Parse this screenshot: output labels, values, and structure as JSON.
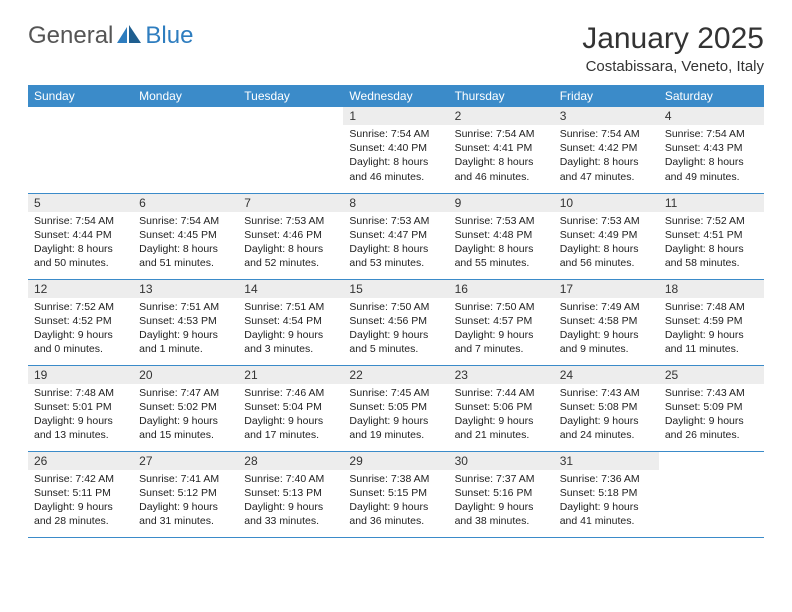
{
  "logo": {
    "word1": "General",
    "word2": "Blue"
  },
  "title": "January 2025",
  "location": "Costabissara, Veneto, Italy",
  "colors": {
    "header_bg": "#3b8bc9",
    "header_fg": "#ffffff",
    "daynum_bg": "#ededed",
    "border": "#3b8bc9",
    "logo_gray": "#555555",
    "logo_blue": "#2e7dbf"
  },
  "day_headers": [
    "Sunday",
    "Monday",
    "Tuesday",
    "Wednesday",
    "Thursday",
    "Friday",
    "Saturday"
  ],
  "weeks": [
    [
      {
        "n": "",
        "sr": "",
        "ss": "",
        "dl": ""
      },
      {
        "n": "",
        "sr": "",
        "ss": "",
        "dl": ""
      },
      {
        "n": "",
        "sr": "",
        "ss": "",
        "dl": ""
      },
      {
        "n": "1",
        "sr": "Sunrise: 7:54 AM",
        "ss": "Sunset: 4:40 PM",
        "dl": "Daylight: 8 hours and 46 minutes."
      },
      {
        "n": "2",
        "sr": "Sunrise: 7:54 AM",
        "ss": "Sunset: 4:41 PM",
        "dl": "Daylight: 8 hours and 46 minutes."
      },
      {
        "n": "3",
        "sr": "Sunrise: 7:54 AM",
        "ss": "Sunset: 4:42 PM",
        "dl": "Daylight: 8 hours and 47 minutes."
      },
      {
        "n": "4",
        "sr": "Sunrise: 7:54 AM",
        "ss": "Sunset: 4:43 PM",
        "dl": "Daylight: 8 hours and 49 minutes."
      }
    ],
    [
      {
        "n": "5",
        "sr": "Sunrise: 7:54 AM",
        "ss": "Sunset: 4:44 PM",
        "dl": "Daylight: 8 hours and 50 minutes."
      },
      {
        "n": "6",
        "sr": "Sunrise: 7:54 AM",
        "ss": "Sunset: 4:45 PM",
        "dl": "Daylight: 8 hours and 51 minutes."
      },
      {
        "n": "7",
        "sr": "Sunrise: 7:53 AM",
        "ss": "Sunset: 4:46 PM",
        "dl": "Daylight: 8 hours and 52 minutes."
      },
      {
        "n": "8",
        "sr": "Sunrise: 7:53 AM",
        "ss": "Sunset: 4:47 PM",
        "dl": "Daylight: 8 hours and 53 minutes."
      },
      {
        "n": "9",
        "sr": "Sunrise: 7:53 AM",
        "ss": "Sunset: 4:48 PM",
        "dl": "Daylight: 8 hours and 55 minutes."
      },
      {
        "n": "10",
        "sr": "Sunrise: 7:53 AM",
        "ss": "Sunset: 4:49 PM",
        "dl": "Daylight: 8 hours and 56 minutes."
      },
      {
        "n": "11",
        "sr": "Sunrise: 7:52 AM",
        "ss": "Sunset: 4:51 PM",
        "dl": "Daylight: 8 hours and 58 minutes."
      }
    ],
    [
      {
        "n": "12",
        "sr": "Sunrise: 7:52 AM",
        "ss": "Sunset: 4:52 PM",
        "dl": "Daylight: 9 hours and 0 minutes."
      },
      {
        "n": "13",
        "sr": "Sunrise: 7:51 AM",
        "ss": "Sunset: 4:53 PM",
        "dl": "Daylight: 9 hours and 1 minute."
      },
      {
        "n": "14",
        "sr": "Sunrise: 7:51 AM",
        "ss": "Sunset: 4:54 PM",
        "dl": "Daylight: 9 hours and 3 minutes."
      },
      {
        "n": "15",
        "sr": "Sunrise: 7:50 AM",
        "ss": "Sunset: 4:56 PM",
        "dl": "Daylight: 9 hours and 5 minutes."
      },
      {
        "n": "16",
        "sr": "Sunrise: 7:50 AM",
        "ss": "Sunset: 4:57 PM",
        "dl": "Daylight: 9 hours and 7 minutes."
      },
      {
        "n": "17",
        "sr": "Sunrise: 7:49 AM",
        "ss": "Sunset: 4:58 PM",
        "dl": "Daylight: 9 hours and 9 minutes."
      },
      {
        "n": "18",
        "sr": "Sunrise: 7:48 AM",
        "ss": "Sunset: 4:59 PM",
        "dl": "Daylight: 9 hours and 11 minutes."
      }
    ],
    [
      {
        "n": "19",
        "sr": "Sunrise: 7:48 AM",
        "ss": "Sunset: 5:01 PM",
        "dl": "Daylight: 9 hours and 13 minutes."
      },
      {
        "n": "20",
        "sr": "Sunrise: 7:47 AM",
        "ss": "Sunset: 5:02 PM",
        "dl": "Daylight: 9 hours and 15 minutes."
      },
      {
        "n": "21",
        "sr": "Sunrise: 7:46 AM",
        "ss": "Sunset: 5:04 PM",
        "dl": "Daylight: 9 hours and 17 minutes."
      },
      {
        "n": "22",
        "sr": "Sunrise: 7:45 AM",
        "ss": "Sunset: 5:05 PM",
        "dl": "Daylight: 9 hours and 19 minutes."
      },
      {
        "n": "23",
        "sr": "Sunrise: 7:44 AM",
        "ss": "Sunset: 5:06 PM",
        "dl": "Daylight: 9 hours and 21 minutes."
      },
      {
        "n": "24",
        "sr": "Sunrise: 7:43 AM",
        "ss": "Sunset: 5:08 PM",
        "dl": "Daylight: 9 hours and 24 minutes."
      },
      {
        "n": "25",
        "sr": "Sunrise: 7:43 AM",
        "ss": "Sunset: 5:09 PM",
        "dl": "Daylight: 9 hours and 26 minutes."
      }
    ],
    [
      {
        "n": "26",
        "sr": "Sunrise: 7:42 AM",
        "ss": "Sunset: 5:11 PM",
        "dl": "Daylight: 9 hours and 28 minutes."
      },
      {
        "n": "27",
        "sr": "Sunrise: 7:41 AM",
        "ss": "Sunset: 5:12 PM",
        "dl": "Daylight: 9 hours and 31 minutes."
      },
      {
        "n": "28",
        "sr": "Sunrise: 7:40 AM",
        "ss": "Sunset: 5:13 PM",
        "dl": "Daylight: 9 hours and 33 minutes."
      },
      {
        "n": "29",
        "sr": "Sunrise: 7:38 AM",
        "ss": "Sunset: 5:15 PM",
        "dl": "Daylight: 9 hours and 36 minutes."
      },
      {
        "n": "30",
        "sr": "Sunrise: 7:37 AM",
        "ss": "Sunset: 5:16 PM",
        "dl": "Daylight: 9 hours and 38 minutes."
      },
      {
        "n": "31",
        "sr": "Sunrise: 7:36 AM",
        "ss": "Sunset: 5:18 PM",
        "dl": "Daylight: 9 hours and 41 minutes."
      },
      {
        "n": "",
        "sr": "",
        "ss": "",
        "dl": ""
      }
    ]
  ]
}
